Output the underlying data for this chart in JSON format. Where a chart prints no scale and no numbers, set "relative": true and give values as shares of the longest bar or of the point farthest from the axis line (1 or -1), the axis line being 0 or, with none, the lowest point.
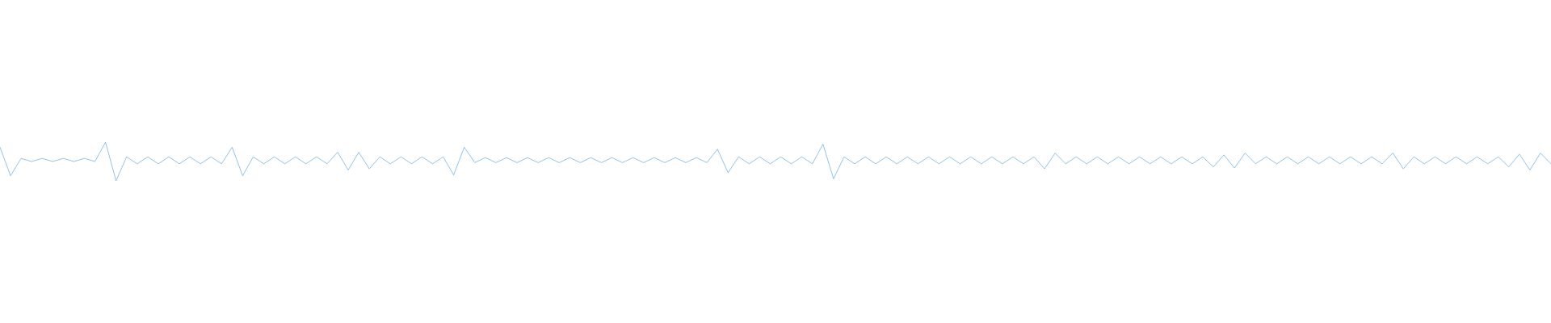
{
  "chart_data": {
    "type": "line",
    "relative": true,
    "color": "#5ba5da",
    "categories": [
      null,
      null,
      null,
      null,
      null,
      null,
      null,
      null,
      null,
      null,
      null,
      null,
      null,
      null,
      null,
      null,
      null,
      null,
      null,
      null,
      null,
      null,
      null,
      null,
      null,
      null,
      null,
      null,
      null,
      null,
      null,
      null,
      null,
      null,
      null,
      null,
      null,
      null,
      null,
      null,
      null,
      null,
      null,
      null,
      null,
      null,
      null,
      null,
      null,
      null,
      null,
      null,
      null,
      null,
      null,
      null,
      null,
      null,
      null,
      null,
      null,
      null,
      null,
      null,
      null,
      null,
      null,
      null,
      null,
      null,
      null,
      null,
      null,
      null,
      null,
      null,
      null,
      null,
      null,
      null,
      null,
      null,
      null,
      null,
      null,
      null,
      null,
      null,
      null,
      null,
      null,
      null,
      null,
      null,
      null,
      null,
      null,
      null,
      null,
      null,
      null,
      null,
      null,
      null,
      null,
      null,
      null,
      null,
      null,
      null,
      null,
      null,
      null,
      null,
      null,
      null,
      null,
      null,
      null,
      null,
      null,
      null,
      null,
      null,
      null,
      null,
      null,
      null,
      null,
      null,
      null,
      null,
      null,
      null,
      null,
      null,
      null,
      null,
      null,
      null,
      null,
      null,
      null,
      null,
      null,
      null,
      null,
      null
    ],
    "values": [
      0.87,
      0.13,
      0.58,
      0.5,
      0.58,
      0.5,
      0.58,
      0.5,
      0.58,
      0.5,
      1.0,
      0.0,
      0.62,
      0.44,
      0.62,
      0.44,
      0.62,
      0.44,
      0.62,
      0.44,
      0.62,
      0.44,
      0.87,
      0.13,
      0.62,
      0.44,
      0.62,
      0.44,
      0.62,
      0.44,
      0.62,
      0.44,
      0.74,
      0.28,
      0.74,
      0.31,
      0.62,
      0.44,
      0.62,
      0.44,
      0.62,
      0.44,
      0.62,
      0.15,
      0.87,
      0.47,
      0.6,
      0.47,
      0.6,
      0.47,
      0.6,
      0.47,
      0.6,
      0.47,
      0.6,
      0.47,
      0.6,
      0.47,
      0.6,
      0.47,
      0.6,
      0.47,
      0.6,
      0.47,
      0.6,
      0.47,
      0.6,
      0.47,
      0.82,
      0.21,
      0.62,
      0.44,
      0.62,
      0.44,
      0.62,
      0.44,
      0.62,
      0.44,
      0.95,
      0.05,
      0.62,
      0.44,
      0.62,
      0.44,
      0.62,
      0.44,
      0.62,
      0.44,
      0.62,
      0.44,
      0.62,
      0.44,
      0.62,
      0.44,
      0.62,
      0.44,
      0.62,
      0.44,
      0.62,
      0.31,
      0.72,
      0.44,
      0.62,
      0.44,
      0.62,
      0.44,
      0.62,
      0.44,
      0.62,
      0.44,
      0.62,
      0.44,
      0.62,
      0.44,
      0.62,
      0.36,
      0.67,
      0.33,
      0.72,
      0.44,
      0.62,
      0.44,
      0.62,
      0.44,
      0.62,
      0.44,
      0.62,
      0.44,
      0.62,
      0.44,
      0.62,
      0.44,
      0.72,
      0.31,
      0.62,
      0.44,
      0.62,
      0.44,
      0.62,
      0.44,
      0.62,
      0.44,
      0.62,
      0.36,
      0.69,
      0.28,
      0.72,
      0.44
    ]
  }
}
